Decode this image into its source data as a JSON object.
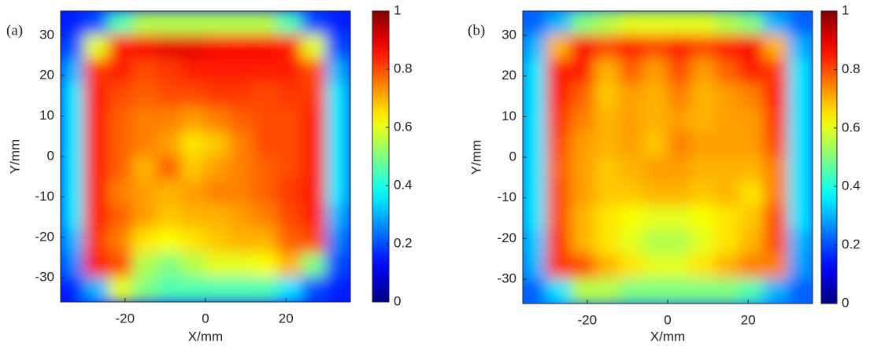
{
  "chart_data": [
    {
      "type": "heatmap",
      "label": "(a)",
      "xlabel": "X/mm",
      "ylabel": "Y/mm",
      "xlim": [
        -36,
        36
      ],
      "ylim": [
        -36,
        36
      ],
      "xticks": [
        -20,
        0,
        20
      ],
      "yticks": [
        -30,
        -20,
        -10,
        0,
        10,
        20,
        30
      ],
      "clim": [
        0,
        1
      ],
      "cticks": [
        0,
        0.2,
        0.4,
        0.6,
        0.8,
        1
      ],
      "colormap": "jet",
      "x": [
        -33,
        -27,
        -21,
        -15,
        -9,
        -3,
        3,
        9,
        15,
        21,
        27,
        33
      ],
      "y": [
        33,
        27,
        21,
        15,
        9,
        3,
        -3,
        -9,
        -15,
        -21,
        -27,
        -33
      ],
      "values": [
        [
          0.15,
          0.2,
          0.45,
          0.55,
          0.55,
          0.55,
          0.55,
          0.55,
          0.55,
          0.45,
          0.2,
          0.15
        ],
        [
          0.2,
          0.6,
          0.85,
          0.88,
          0.9,
          0.9,
          0.88,
          0.88,
          0.88,
          0.85,
          0.6,
          0.2
        ],
        [
          0.3,
          0.82,
          0.85,
          0.8,
          0.82,
          0.85,
          0.85,
          0.85,
          0.85,
          0.85,
          0.8,
          0.3
        ],
        [
          0.35,
          0.85,
          0.8,
          0.78,
          0.8,
          0.8,
          0.82,
          0.82,
          0.8,
          0.82,
          0.82,
          0.35
        ],
        [
          0.35,
          0.85,
          0.78,
          0.75,
          0.75,
          0.72,
          0.75,
          0.78,
          0.8,
          0.8,
          0.85,
          0.35
        ],
        [
          0.35,
          0.85,
          0.78,
          0.75,
          0.72,
          0.65,
          0.68,
          0.75,
          0.8,
          0.8,
          0.85,
          0.35
        ],
        [
          0.35,
          0.85,
          0.78,
          0.7,
          0.78,
          0.68,
          0.72,
          0.75,
          0.78,
          0.8,
          0.85,
          0.35
        ],
        [
          0.35,
          0.85,
          0.75,
          0.72,
          0.7,
          0.72,
          0.75,
          0.75,
          0.78,
          0.82,
          0.85,
          0.35
        ],
        [
          0.35,
          0.85,
          0.78,
          0.72,
          0.68,
          0.7,
          0.7,
          0.72,
          0.75,
          0.8,
          0.85,
          0.3
        ],
        [
          0.3,
          0.82,
          0.75,
          0.65,
          0.62,
          0.65,
          0.68,
          0.7,
          0.7,
          0.78,
          0.8,
          0.25
        ],
        [
          0.25,
          0.85,
          0.8,
          0.55,
          0.5,
          0.55,
          0.6,
          0.6,
          0.62,
          0.7,
          0.5,
          0.2
        ],
        [
          0.15,
          0.3,
          0.6,
          0.5,
          0.45,
          0.45,
          0.45,
          0.45,
          0.45,
          0.35,
          0.2,
          0.15
        ]
      ]
    },
    {
      "type": "heatmap",
      "label": "(b)",
      "xlabel": "X/mm",
      "ylabel": "Y/mm",
      "xlim": [
        -36,
        36
      ],
      "ylim": [
        -36,
        36
      ],
      "xticks": [
        -20,
        0,
        20
      ],
      "yticks": [
        -30,
        -20,
        -10,
        0,
        10,
        20,
        30
      ],
      "clim": [
        0,
        1
      ],
      "cticks": [
        0,
        0.2,
        0.4,
        0.6,
        0.8,
        1
      ],
      "colormap": "jet",
      "x": [
        -33,
        -27,
        -21,
        -15,
        -9,
        -3,
        3,
        9,
        15,
        21,
        27,
        33
      ],
      "y": [
        33,
        27,
        21,
        15,
        9,
        3,
        -3,
        -9,
        -15,
        -21,
        -27,
        -33
      ],
      "values": [
        [
          0.22,
          0.3,
          0.5,
          0.55,
          0.6,
          0.6,
          0.6,
          0.6,
          0.55,
          0.5,
          0.3,
          0.22
        ],
        [
          0.3,
          0.7,
          0.88,
          0.8,
          0.85,
          0.8,
          0.85,
          0.8,
          0.85,
          0.88,
          0.7,
          0.3
        ],
        [
          0.35,
          0.85,
          0.85,
          0.7,
          0.78,
          0.72,
          0.8,
          0.72,
          0.78,
          0.85,
          0.82,
          0.35
        ],
        [
          0.35,
          0.85,
          0.78,
          0.68,
          0.72,
          0.7,
          0.75,
          0.7,
          0.72,
          0.75,
          0.85,
          0.35
        ],
        [
          0.35,
          0.82,
          0.75,
          0.7,
          0.72,
          0.7,
          0.72,
          0.7,
          0.72,
          0.72,
          0.82,
          0.35
        ],
        [
          0.35,
          0.8,
          0.72,
          0.7,
          0.72,
          0.68,
          0.75,
          0.72,
          0.72,
          0.72,
          0.8,
          0.35
        ],
        [
          0.35,
          0.78,
          0.72,
          0.68,
          0.7,
          0.72,
          0.72,
          0.7,
          0.7,
          0.7,
          0.75,
          0.35
        ],
        [
          0.35,
          0.8,
          0.72,
          0.68,
          0.68,
          0.7,
          0.7,
          0.68,
          0.7,
          0.65,
          0.75,
          0.35
        ],
        [
          0.35,
          0.8,
          0.7,
          0.65,
          0.62,
          0.6,
          0.6,
          0.62,
          0.65,
          0.68,
          0.8,
          0.35
        ],
        [
          0.32,
          0.82,
          0.7,
          0.65,
          0.6,
          0.55,
          0.55,
          0.6,
          0.65,
          0.7,
          0.8,
          0.3
        ],
        [
          0.3,
          0.82,
          0.8,
          0.7,
          0.65,
          0.6,
          0.6,
          0.65,
          0.7,
          0.75,
          0.75,
          0.28
        ],
        [
          0.22,
          0.35,
          0.55,
          0.55,
          0.5,
          0.5,
          0.5,
          0.5,
          0.5,
          0.45,
          0.3,
          0.22
        ]
      ]
    }
  ]
}
